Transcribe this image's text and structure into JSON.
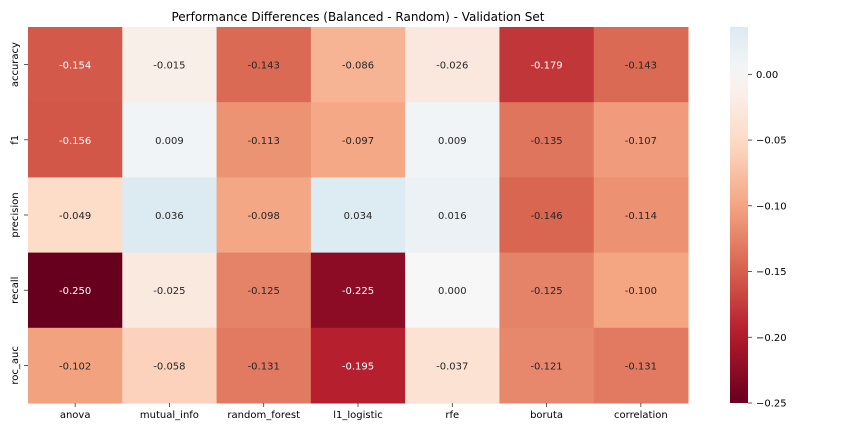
{
  "chart_data": {
    "type": "heatmap",
    "title": "Performance Differences (Balanced - Random) - Validation Set",
    "x_categories": [
      "anova",
      "mutual_info",
      "random_forest",
      "l1_logistic",
      "rfe",
      "boruta",
      "correlation"
    ],
    "y_categories": [
      "accuracy",
      "f1",
      "precision",
      "recall",
      "roc_auc"
    ],
    "values": [
      [
        -0.154,
        -0.015,
        -0.143,
        -0.086,
        -0.026,
        -0.179,
        -0.143
      ],
      [
        -0.156,
        0.009,
        -0.113,
        -0.097,
        0.009,
        -0.135,
        -0.107
      ],
      [
        -0.049,
        0.036,
        -0.098,
        0.034,
        0.016,
        -0.146,
        -0.114
      ],
      [
        -0.25,
        -0.025,
        -0.125,
        -0.225,
        0.0,
        -0.125,
        -0.1
      ],
      [
        -0.102,
        -0.058,
        -0.131,
        -0.195,
        -0.037,
        -0.121,
        -0.131
      ]
    ],
    "value_labels": [
      [
        "-0.154",
        "-0.015",
        "-0.143",
        "-0.086",
        "-0.026",
        "-0.179",
        "-0.143"
      ],
      [
        "-0.156",
        "0.009",
        "-0.113",
        "-0.097",
        "0.009",
        "-0.135",
        "-0.107"
      ],
      [
        "-0.049",
        "0.036",
        "-0.098",
        "0.034",
        "0.016",
        "-0.146",
        "-0.114"
      ],
      [
        "-0.250",
        "-0.025",
        "-0.125",
        "-0.225",
        "0.000",
        "-0.125",
        "-0.100"
      ],
      [
        "-0.102",
        "-0.058",
        "-0.131",
        "-0.195",
        "-0.037",
        "-0.121",
        "-0.131"
      ]
    ],
    "colormap": "RdBu (diverging, center 0)",
    "colorbar": {
      "vmin": -0.25,
      "vmax": 0.036,
      "ticks": [
        0.0,
        -0.05,
        -0.1,
        -0.15,
        -0.2,
        -0.25
      ],
      "tick_labels": [
        "0.00",
        "−0.05",
        "−0.10",
        "−0.15",
        "−0.20",
        "−0.25"
      ]
    },
    "annotations": true,
    "grid": false
  }
}
